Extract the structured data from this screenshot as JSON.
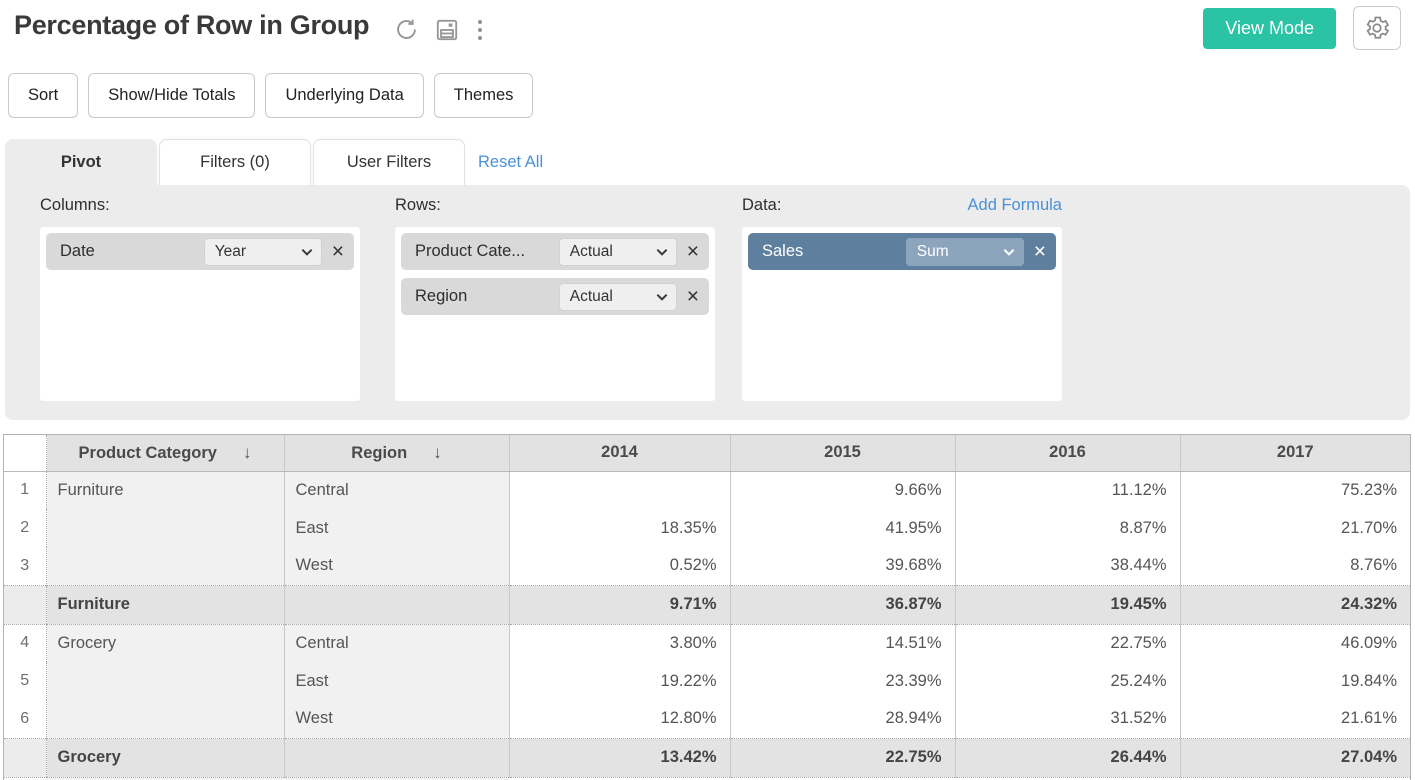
{
  "header": {
    "title": "Percentage of Row in Group",
    "view_mode_label": "View Mode"
  },
  "toolbar": {
    "buttons": [
      "Sort",
      "Show/Hide Totals",
      "Underlying Data",
      "Themes"
    ]
  },
  "tabs": {
    "pivot_label": "Pivot",
    "filters_label": "Filters  (0)",
    "user_filters_label": "User Filters",
    "reset_all_label": "Reset All",
    "active": "Pivot"
  },
  "builder": {
    "columns": {
      "label": "Columns:",
      "fields": [
        {
          "name": "Date",
          "option": "Year"
        }
      ]
    },
    "rows": {
      "label": "Rows:",
      "fields": [
        {
          "name": "Product Cate...",
          "option": "Actual"
        },
        {
          "name": "Region",
          "option": "Actual"
        }
      ]
    },
    "data": {
      "label": "Data:",
      "add_formula_label": "Add Formula",
      "fields": [
        {
          "name": "Sales",
          "option": "Sum"
        }
      ]
    }
  },
  "colors": {
    "accent_teal": "#2bc3a6",
    "link_blue": "#4a90d9",
    "data_chip_blue": "#5e7f9e",
    "panel_gray": "#ececec"
  },
  "chart_data": {
    "type": "table",
    "title": "Percentage of Row in Group",
    "columns": [
      "Product Category",
      "Region",
      "2014",
      "2015",
      "2016",
      "2017"
    ],
    "sorted_columns": [
      "Product Category",
      "Region"
    ],
    "rows": [
      {
        "num": "1",
        "category": "Furniture",
        "region": "Central",
        "values": [
          "",
          "9.66%",
          "11.12%",
          "75.23%"
        ],
        "total": false
      },
      {
        "num": "2",
        "category": "",
        "region": "East",
        "values": [
          "18.35%",
          "41.95%",
          "8.87%",
          "21.70%"
        ],
        "total": false
      },
      {
        "num": "3",
        "category": "",
        "region": "West",
        "values": [
          "0.52%",
          "39.68%",
          "38.44%",
          "8.76%"
        ],
        "total": false
      },
      {
        "num": "",
        "category": "Furniture",
        "region": "",
        "values": [
          "9.71%",
          "36.87%",
          "19.45%",
          "24.32%"
        ],
        "total": true
      },
      {
        "num": "4",
        "category": "Grocery",
        "region": "Central",
        "values": [
          "3.80%",
          "14.51%",
          "22.75%",
          "46.09%"
        ],
        "total": false
      },
      {
        "num": "5",
        "category": "",
        "region": "East",
        "values": [
          "19.22%",
          "23.39%",
          "25.24%",
          "19.84%"
        ],
        "total": false
      },
      {
        "num": "6",
        "category": "",
        "region": "West",
        "values": [
          "12.80%",
          "28.94%",
          "31.52%",
          "21.61%"
        ],
        "total": false
      },
      {
        "num": "",
        "category": "Grocery",
        "region": "",
        "values": [
          "13.42%",
          "22.75%",
          "26.44%",
          "27.04%"
        ],
        "total": true
      }
    ]
  }
}
